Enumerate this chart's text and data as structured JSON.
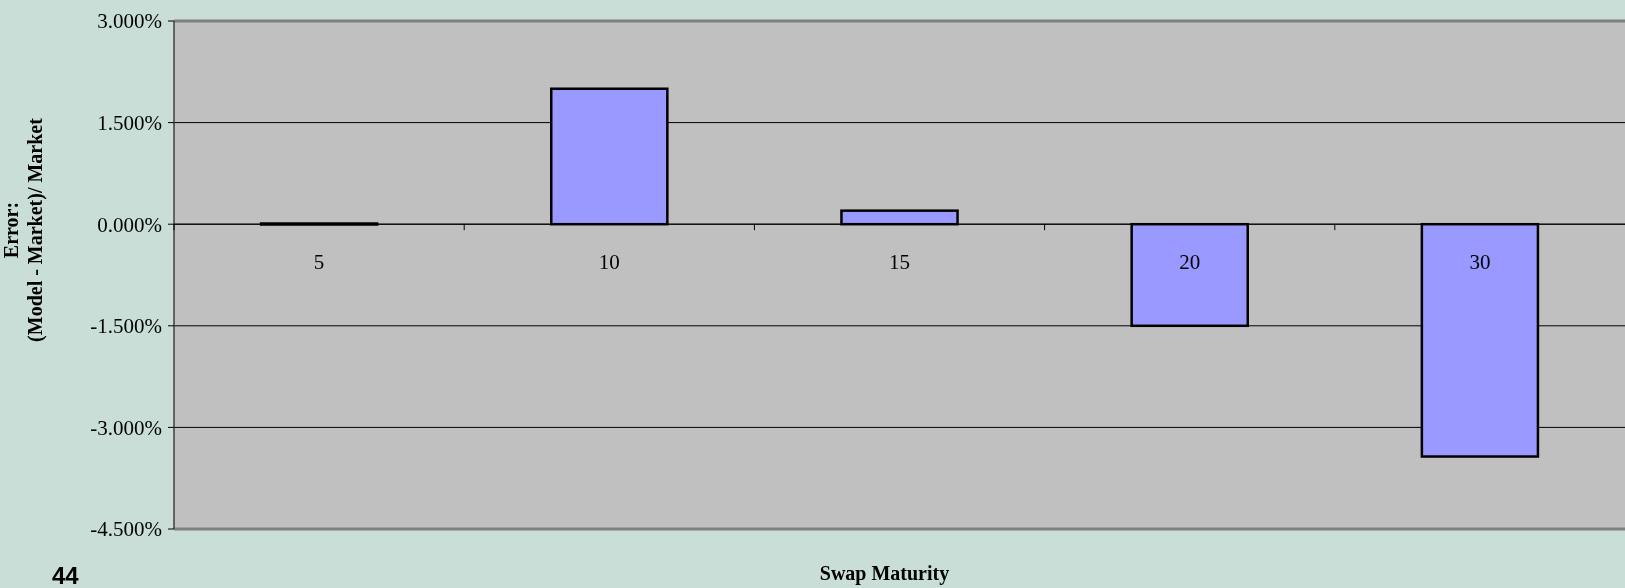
{
  "chart_data": {
    "type": "bar",
    "xlabel": "Swap Maturity",
    "ylabel": "Error:\n(Model - Market)/ Market",
    "categories": [
      "5",
      "10",
      "15",
      "20",
      "30"
    ],
    "series": [
      {
        "color": "#9999ff",
        "values": [
          0.01,
          2.0,
          0.2,
          -1.5,
          -3.43
        ]
      }
    ],
    "ylim": [
      -4.5,
      3
    ],
    "yticks": [
      {
        "value": -4.5,
        "label": "-4.500%"
      },
      {
        "value": -3,
        "label": "-3.000%"
      },
      {
        "value": -1.5,
        "label": "-1.500%"
      },
      {
        "value": 0,
        "label": "0.000%"
      },
      {
        "value": 1.5,
        "label": "1.500%"
      },
      {
        "value": 3,
        "label": "3.000%"
      }
    ],
    "grid": "y",
    "annotations": [
      "44"
    ]
  }
}
